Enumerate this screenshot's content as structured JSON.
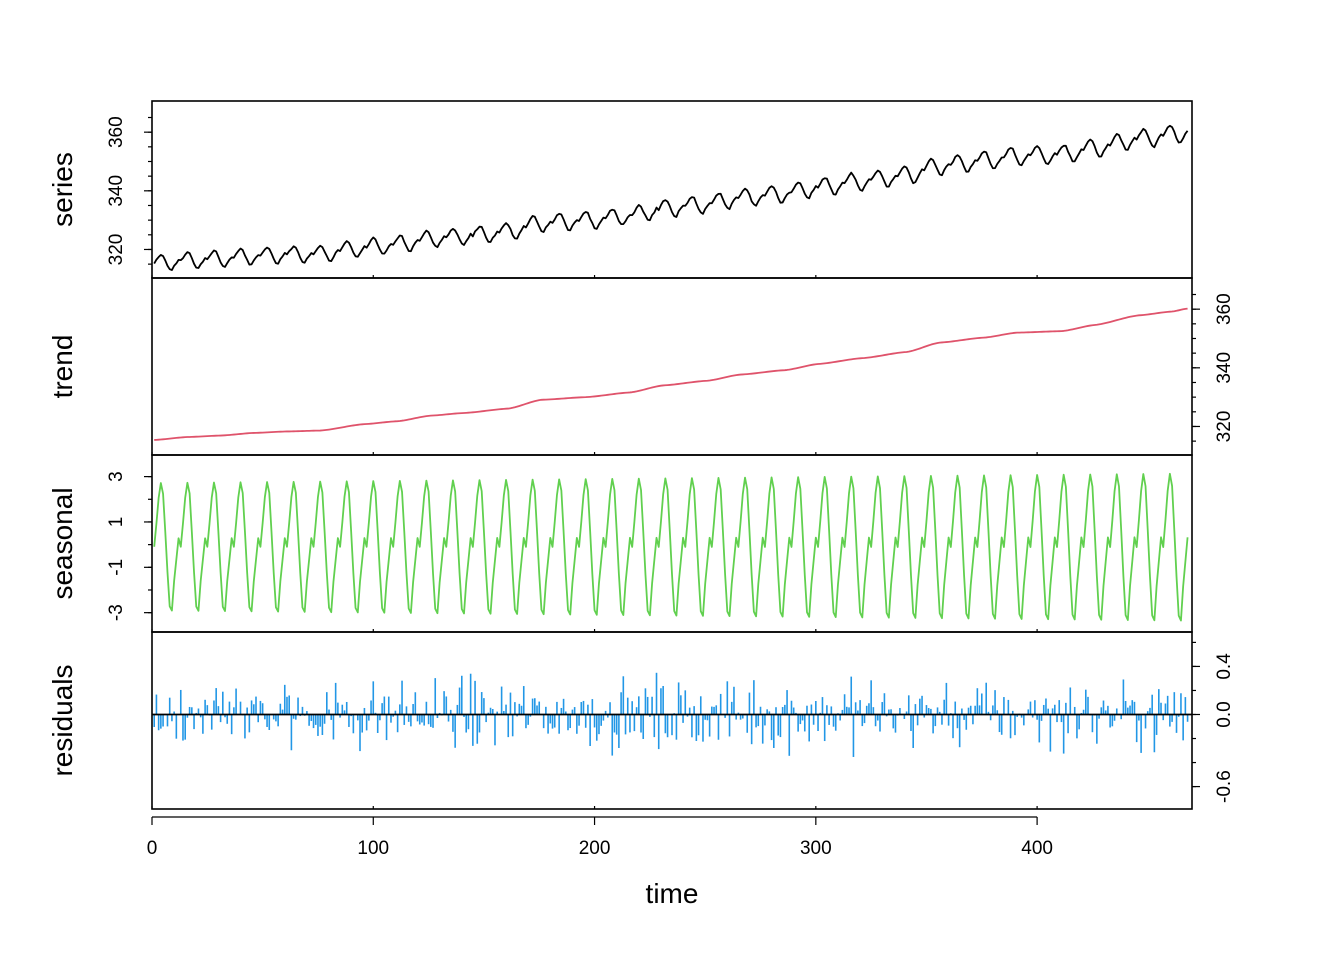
{
  "chart_data": {
    "type": "line",
    "xlabel": "time",
    "xlim": [
      0,
      470
    ],
    "x_ticks": [
      {
        "value": 0,
        "label": "0"
      },
      {
        "value": 100,
        "label": "100"
      },
      {
        "value": 200,
        "label": "200"
      },
      {
        "value": 300,
        "label": "300"
      },
      {
        "value": 400,
        "label": "400"
      }
    ],
    "n_points": 468,
    "period": 12,
    "panels": [
      {
        "name": "series",
        "ylabel": "series",
        "color": "#000000",
        "render": "line",
        "axis_side": "left",
        "ylim": [
          313.0,
          367.9
        ],
        "y_ticks": [
          {
            "value": 320,
            "label": "320"
          },
          {
            "value": 340,
            "label": "340"
          },
          {
            "value": 360,
            "label": "360"
          }
        ],
        "minor_tick_step": 5,
        "description_values": {
          "start": 315.4,
          "end": 365.0,
          "min": 313.3,
          "max": 367.5
        }
      },
      {
        "name": "trend",
        "ylabel": "trend",
        "color": "#DF536B",
        "render": "line",
        "axis_side": "right",
        "ylim": [
          313.0,
          367.9
        ],
        "y_ticks": [
          {
            "value": 320,
            "label": "320"
          },
          {
            "value": 340,
            "label": "340"
          },
          {
            "value": 360,
            "label": "360"
          }
        ],
        "minor_tick_step": 5,
        "knots": [
          [
            0,
            315.4
          ],
          [
            15,
            316.4
          ],
          [
            30,
            316.9
          ],
          [
            45,
            317.8
          ],
          [
            60,
            318.3
          ],
          [
            75,
            318.6
          ],
          [
            95,
            320.8
          ],
          [
            110,
            321.8
          ],
          [
            125,
            323.7
          ],
          [
            140,
            324.6
          ],
          [
            160,
            326.1
          ],
          [
            175,
            329.1
          ],
          [
            195,
            330.0
          ],
          [
            215,
            331.6
          ],
          [
            230,
            334.0
          ],
          [
            250,
            335.6
          ],
          [
            265,
            337.7
          ],
          [
            285,
            339.2
          ],
          [
            300,
            341.3
          ],
          [
            320,
            343.3
          ],
          [
            340,
            345.4
          ],
          [
            355,
            348.6
          ],
          [
            375,
            350.3
          ],
          [
            390,
            352.0
          ],
          [
            410,
            352.5
          ],
          [
            425,
            354.6
          ],
          [
            445,
            357.9
          ],
          [
            460,
            359.2
          ],
          [
            467,
            360.2
          ]
        ]
      },
      {
        "name": "seasonal",
        "ylabel": "seasonal",
        "color": "#61D04F",
        "render": "line",
        "axis_side": "left",
        "ylim": [
          -3.5,
          3.6
        ],
        "y_ticks": [
          {
            "value": -3,
            "label": "-3"
          },
          {
            "value": -1,
            "label": "-1"
          },
          {
            "value": 1,
            "label": "1"
          },
          {
            "value": 3,
            "label": "3"
          }
        ],
        "minor_tick_step": 1,
        "amplitude_start": 2.9,
        "amplitude_end": 3.35,
        "cycle_shape": [
          -0.1,
          1.0,
          2.2,
          2.9,
          2.4,
          0.6,
          -1.3,
          -2.9,
          -3.1,
          -1.7,
          -0.7,
          0.3
        ]
      },
      {
        "name": "remainder",
        "ylabel": "residuals",
        "color": "#2297E6",
        "render": "bars",
        "axis_side": "right",
        "baseline": 0,
        "ylim": [
          -0.72,
          0.62
        ],
        "y_ticks": [
          {
            "value": -0.6,
            "label": "-0.6"
          },
          {
            "value": 0.0,
            "label": "0.0"
          },
          {
            "value": 0.4,
            "label": "0.4"
          }
        ],
        "minor_tick_step": 0.2,
        "range_observed": [
          -0.68,
          0.59
        ],
        "typical_abs": 0.22
      }
    ]
  }
}
